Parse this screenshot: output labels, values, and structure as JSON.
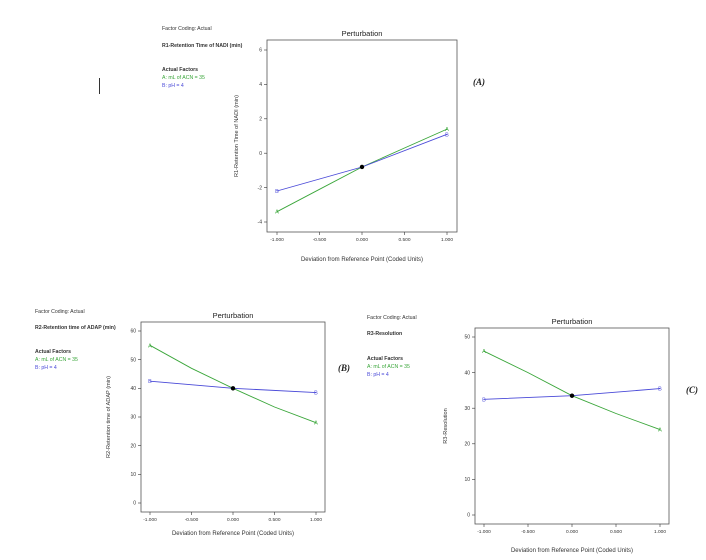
{
  "panels": [
    {
      "label": "(A)",
      "factor_coding": "Factor Coding: Actual",
      "response": "R1-Retention Time of NADI (min)",
      "actual_factors_title": "Actual Factors",
      "factor_a": "A: mL of ACN = 35",
      "factor_b": "B: pH = 4"
    },
    {
      "label": "(B)",
      "factor_coding": "Factor Coding: Actual",
      "response": "R2-Retention time of ADAP (min)",
      "actual_factors_title": "Actual Factors",
      "factor_a": "A: mL of ACN = 35",
      "factor_b": "B: pH = 4"
    },
    {
      "label": "(C)",
      "factor_coding": "Factor Coding: Actual",
      "response": "R3-Resolution",
      "actual_factors_title": "Actual Factors",
      "factor_a": "A: mL of ACN = 35",
      "factor_b": "B: pH = 4"
    }
  ],
  "colors": {
    "A": "#3aa63a",
    "B": "#4a4ad8",
    "axis": "#333333",
    "frame": "#555555"
  },
  "chart_data": [
    {
      "type": "line",
      "title": "Perturbation",
      "xlabel": "Deviation from Reference Point (Coded Units)",
      "ylabel": "R1-Retention Time of NADI (min)",
      "xlim": [
        -1,
        1
      ],
      "ylim": [
        -4,
        6
      ],
      "xticks": [
        "-1.000",
        "-0.500",
        "0.000",
        "0.500",
        "1.000"
      ],
      "xtick_values": [
        -1,
        -0.5,
        0,
        0.5,
        1
      ],
      "yticks": [
        "-4",
        "-2",
        "0",
        "2",
        "4",
        "6"
      ],
      "ytick_values": [
        -4,
        -2,
        0,
        2,
        4,
        6
      ],
      "reference_point": {
        "x": 0,
        "y": -0.8
      },
      "series": [
        {
          "name": "A",
          "x": [
            -1,
            -0.5,
            0,
            0.5,
            1
          ],
          "y": [
            -3.4,
            -2.1,
            -0.8,
            0.3,
            1.4
          ]
        },
        {
          "name": "B",
          "x": [
            -1,
            0,
            1
          ],
          "y": [
            -2.2,
            -0.8,
            1.1
          ]
        }
      ]
    },
    {
      "type": "line",
      "title": "Perturbation",
      "xlabel": "Deviation from Reference Point (Coded Units)",
      "ylabel": "R2-Retention time of ADAP (min)",
      "xlim": [
        -1,
        1
      ],
      "ylim": [
        0,
        60
      ],
      "xticks": [
        "-1.000",
        "-0.500",
        "0.000",
        "0.500",
        "1.000"
      ],
      "xtick_values": [
        -1,
        -0.5,
        0,
        0.5,
        1
      ],
      "yticks": [
        "0",
        "10",
        "20",
        "30",
        "40",
        "50",
        "60"
      ],
      "ytick_values": [
        0,
        10,
        20,
        30,
        40,
        50,
        60
      ],
      "reference_point": {
        "x": 0,
        "y": 40
      },
      "series": [
        {
          "name": "A",
          "x": [
            -1,
            -0.5,
            0,
            0.5,
            1
          ],
          "y": [
            55,
            47,
            40,
            33.5,
            28
          ]
        },
        {
          "name": "B",
          "x": [
            -1,
            0,
            1
          ],
          "y": [
            42.5,
            40,
            38.5
          ]
        }
      ]
    },
    {
      "type": "line",
      "title": "Perturbation",
      "xlabel": "Deviation from Reference Point (Coded Units)",
      "ylabel": "R3-Resolution",
      "xlim": [
        -1,
        1
      ],
      "ylim": [
        0,
        50
      ],
      "xticks": [
        "-1.000",
        "-0.500",
        "0.000",
        "0.500",
        "1.000"
      ],
      "xtick_values": [
        -1,
        -0.5,
        0,
        0.5,
        1
      ],
      "yticks": [
        "0",
        "10",
        "20",
        "30",
        "40",
        "50"
      ],
      "ytick_values": [
        0,
        10,
        20,
        30,
        40,
        50
      ],
      "reference_point": {
        "x": 0,
        "y": 33.5
      },
      "series": [
        {
          "name": "A",
          "x": [
            -1,
            -0.5,
            0,
            0.5,
            1
          ],
          "y": [
            46,
            40,
            33.5,
            28.5,
            24
          ]
        },
        {
          "name": "B",
          "x": [
            -1,
            0,
            1
          ],
          "y": [
            32.5,
            33.5,
            35.5
          ]
        }
      ]
    }
  ]
}
